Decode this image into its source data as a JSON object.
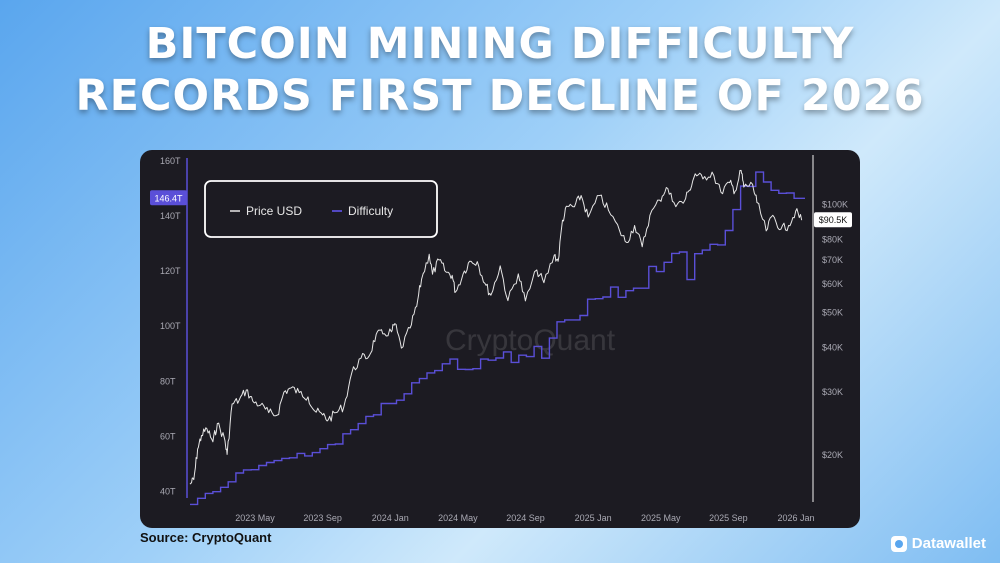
{
  "headline": {
    "line1": "BITCOIN MINING DIFFICULTY",
    "line2": "RECORDS FIRST DECLINE OF 2026"
  },
  "watermark": "CryptoQuant",
  "source": "Source: CryptoQuant",
  "brand": "Datawallet",
  "colors": {
    "panel_background": "#1c1b22",
    "price_line": "#e6e6e6",
    "difficulty_line": "#5a4fd8",
    "difficulty_badge": "#5a4fd8",
    "price_badge": "#ffffff"
  },
  "chart_data": {
    "type": "line",
    "legend": {
      "position": "top-left",
      "items": [
        "Price USD",
        "Difficulty"
      ]
    },
    "grid": false,
    "x_ticks": [
      "2023 May",
      "2023 Sep",
      "2024 Jan",
      "2024 May",
      "2024 Sep",
      "2025 Jan",
      "2025 May",
      "2025 Sep",
      "2026 Jan"
    ],
    "x_range": [
      "2023-01-01",
      "2026-01-31"
    ],
    "y_left": {
      "label": "",
      "unit": "T",
      "ticks": [
        "40T",
        "60T",
        "80T",
        "100T",
        "120T",
        "140T",
        "160T"
      ],
      "tick_values": [
        40,
        60,
        80,
        100,
        120,
        140,
        160
      ],
      "range": [
        37,
        161
      ]
    },
    "y_right": {
      "label": "",
      "scale": "log",
      "ticks": [
        "$20K",
        "$30K",
        "$40K",
        "$50K",
        "$60K",
        "$70K",
        "$80K",
        "$100K"
      ],
      "tick_values": [
        20000,
        30000,
        40000,
        50000,
        60000,
        70000,
        80000,
        100000
      ],
      "range": [
        15000,
        135000
      ]
    },
    "current_labels": {
      "difficulty": "146.4T",
      "price": "$90.5K"
    },
    "series": [
      {
        "name": "Difficulty",
        "axis": "left",
        "unit": "T",
        "points": [
          [
            "2023-01-01",
            35.4
          ],
          [
            "2023-01-15",
            37.6
          ],
          [
            "2023-01-29",
            39.4
          ],
          [
            "2023-02-12",
            40.0
          ],
          [
            "2023-02-26",
            41.6
          ],
          [
            "2023-03-12",
            43.6
          ],
          [
            "2023-03-26",
            46.8
          ],
          [
            "2023-04-09",
            47.9
          ],
          [
            "2023-04-23",
            48.0
          ],
          [
            "2023-05-07",
            49.5
          ],
          [
            "2023-05-21",
            50.6
          ],
          [
            "2023-06-04",
            51.3
          ],
          [
            "2023-06-18",
            52.1
          ],
          [
            "2023-07-02",
            52.3
          ],
          [
            "2023-07-16",
            53.9
          ],
          [
            "2023-07-30",
            53.0
          ],
          [
            "2023-08-13",
            54.2
          ],
          [
            "2023-08-27",
            55.6
          ],
          [
            "2023-09-10",
            57.1
          ],
          [
            "2023-09-24",
            57.3
          ],
          [
            "2023-10-08",
            61.0
          ],
          [
            "2023-10-22",
            62.5
          ],
          [
            "2023-11-05",
            64.7
          ],
          [
            "2023-11-19",
            67.3
          ],
          [
            "2023-12-03",
            67.9
          ],
          [
            "2023-12-17",
            72.0
          ],
          [
            "2023-12-31",
            72.0
          ],
          [
            "2024-01-14",
            73.2
          ],
          [
            "2024-01-28",
            75.5
          ],
          [
            "2024-02-11",
            79.5
          ],
          [
            "2024-02-25",
            81.0
          ],
          [
            "2024-03-10",
            83.1
          ],
          [
            "2024-03-24",
            83.9
          ],
          [
            "2024-04-07",
            86.4
          ],
          [
            "2024-04-21",
            88.1
          ],
          [
            "2024-05-05",
            84.4
          ],
          [
            "2024-05-19",
            84.3
          ],
          [
            "2024-06-02",
            84.6
          ],
          [
            "2024-06-16",
            88.1
          ],
          [
            "2024-06-30",
            87.7
          ],
          [
            "2024-07-14",
            88.5
          ],
          [
            "2024-07-28",
            90.7
          ],
          [
            "2024-08-11",
            86.9
          ],
          [
            "2024-08-25",
            89.5
          ],
          [
            "2024-09-08",
            89.0
          ],
          [
            "2024-09-22",
            92.7
          ],
          [
            "2024-10-06",
            88.4
          ],
          [
            "2024-10-20",
            95.7
          ],
          [
            "2024-11-03",
            101.6
          ],
          [
            "2024-11-17",
            102.3
          ],
          [
            "2024-12-01",
            102.3
          ],
          [
            "2024-12-15",
            103.9
          ],
          [
            "2024-12-29",
            109.8
          ],
          [
            "2025-01-12",
            110.0
          ],
          [
            "2025-01-26",
            110.6
          ],
          [
            "2025-02-09",
            114.2
          ],
          [
            "2025-02-23",
            110.5
          ],
          [
            "2025-03-09",
            112.9
          ],
          [
            "2025-03-23",
            113.8
          ],
          [
            "2025-04-06",
            113.8
          ],
          [
            "2025-04-20",
            121.7
          ],
          [
            "2025-05-04",
            119.8
          ],
          [
            "2025-05-18",
            123.2
          ],
          [
            "2025-06-01",
            126.4
          ],
          [
            "2025-06-15",
            126.9
          ],
          [
            "2025-06-29",
            116.9
          ],
          [
            "2025-07-13",
            126.3
          ],
          [
            "2025-07-27",
            127.6
          ],
          [
            "2025-08-10",
            129.7
          ],
          [
            "2025-08-24",
            129.5
          ],
          [
            "2025-09-07",
            134.7
          ],
          [
            "2025-09-21",
            142.3
          ],
          [
            "2025-10-05",
            150.8
          ],
          [
            "2025-10-19",
            150.7
          ],
          [
            "2025-11-02",
            155.9
          ],
          [
            "2025-11-16",
            152.3
          ],
          [
            "2025-11-30",
            149.3
          ],
          [
            "2025-12-14",
            148.2
          ],
          [
            "2025-12-28",
            148.3
          ],
          [
            "2026-01-11",
            146.4
          ],
          [
            "2026-01-25",
            146.4
          ]
        ]
      },
      {
        "name": "Price USD",
        "axis": "right",
        "unit": "USD",
        "points": [
          [
            "2023-01-01",
            16600
          ],
          [
            "2023-01-08",
            17100
          ],
          [
            "2023-01-15",
            20800
          ],
          [
            "2023-01-22",
            22700
          ],
          [
            "2023-02-01",
            23700
          ],
          [
            "2023-02-12",
            21800
          ],
          [
            "2023-02-20",
            24500
          ],
          [
            "2023-03-05",
            22300
          ],
          [
            "2023-03-10",
            20100
          ],
          [
            "2023-03-19",
            27800
          ],
          [
            "2023-04-01",
            28500
          ],
          [
            "2023-04-14",
            30400
          ],
          [
            "2023-04-26",
            28300
          ],
          [
            "2023-05-10",
            27600
          ],
          [
            "2023-05-25",
            26300
          ],
          [
            "2023-06-10",
            25900
          ],
          [
            "2023-06-22",
            30000
          ],
          [
            "2023-07-05",
            30800
          ],
          [
            "2023-07-20",
            29900
          ],
          [
            "2023-08-05",
            29100
          ],
          [
            "2023-08-17",
            26600
          ],
          [
            "2023-09-01",
            25900
          ],
          [
            "2023-09-11",
            25100
          ],
          [
            "2023-09-25",
            26300
          ],
          [
            "2023-10-10",
            27400
          ],
          [
            "2023-10-24",
            33900
          ],
          [
            "2023-11-10",
            37300
          ],
          [
            "2023-11-25",
            37800
          ],
          [
            "2023-12-08",
            43500
          ],
          [
            "2023-12-20",
            43600
          ],
          [
            "2024-01-05",
            44200
          ],
          [
            "2024-01-11",
            46600
          ],
          [
            "2024-01-23",
            39800
          ],
          [
            "2024-02-08",
            45300
          ],
          [
            "2024-02-20",
            52000
          ],
          [
            "2024-02-29",
            62000
          ],
          [
            "2024-03-14",
            72700
          ],
          [
            "2024-03-20",
            64000
          ],
          [
            "2024-04-01",
            70100
          ],
          [
            "2024-04-14",
            64800
          ],
          [
            "2024-04-25",
            63500
          ],
          [
            "2024-05-01",
            57000
          ],
          [
            "2024-05-15",
            64100
          ],
          [
            "2024-05-27",
            69500
          ],
          [
            "2024-06-10",
            69400
          ],
          [
            "2024-06-24",
            60300
          ],
          [
            "2024-07-05",
            55900
          ],
          [
            "2024-07-22",
            67500
          ],
          [
            "2024-08-05",
            54000
          ],
          [
            "2024-08-24",
            64100
          ],
          [
            "2024-09-06",
            53900
          ],
          [
            "2024-09-27",
            65800
          ],
          [
            "2024-10-10",
            60600
          ],
          [
            "2024-10-29",
            72400
          ],
          [
            "2024-11-05",
            69500
          ],
          [
            "2024-11-13",
            90500
          ],
          [
            "2024-11-22",
            98900
          ],
          [
            "2024-12-05",
            98700
          ],
          [
            "2024-12-17",
            106100
          ],
          [
            "2024-12-30",
            92400
          ],
          [
            "2025-01-20",
            106100
          ],
          [
            "2025-02-05",
            96600
          ],
          [
            "2025-02-26",
            84300
          ],
          [
            "2025-03-10",
            78500
          ],
          [
            "2025-03-25",
            87500
          ],
          [
            "2025-04-08",
            76300
          ],
          [
            "2025-04-22",
            93400
          ],
          [
            "2025-05-10",
            103000
          ],
          [
            "2025-05-22",
            111700
          ],
          [
            "2025-06-05",
            101500
          ],
          [
            "2025-06-22",
            101000
          ],
          [
            "2025-07-03",
            109600
          ],
          [
            "2025-07-14",
            122000
          ],
          [
            "2025-07-28",
            118000
          ],
          [
            "2025-08-14",
            123300
          ],
          [
            "2025-08-30",
            108400
          ],
          [
            "2025-09-15",
            115300
          ],
          [
            "2025-09-25",
            109000
          ],
          [
            "2025-10-06",
            124700
          ],
          [
            "2025-10-11",
            112000
          ],
          [
            "2025-10-27",
            114000
          ],
          [
            "2025-11-04",
            101500
          ],
          [
            "2025-11-21",
            84500
          ],
          [
            "2025-12-03",
            93400
          ],
          [
            "2025-12-18",
            85500
          ],
          [
            "2026-01-01",
            87500
          ],
          [
            "2026-01-14",
            96000
          ],
          [
            "2026-01-25",
            90500
          ]
        ]
      }
    ]
  }
}
